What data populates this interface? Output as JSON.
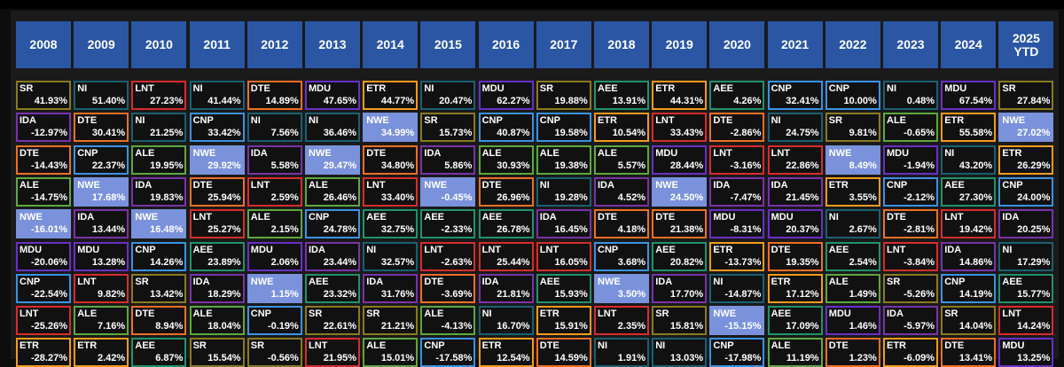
{
  "years": [
    "2008",
    "2009",
    "2010",
    "2011",
    "2012",
    "2013",
    "2014",
    "2015",
    "2016",
    "2017",
    "2018",
    "2019",
    "2020",
    "2021",
    "2022",
    "2023",
    "2024",
    "2025\nYTD"
  ],
  "colors": {
    "SR": "#8b7a1e",
    "NI": "#1b5f73",
    "LNT": "#d62c2c",
    "DTE": "#ee6f24",
    "MDU": "#6a2fc6",
    "ETR": "#f39b1a",
    "AEE": "#21926a",
    "CNP": "#3a92e2",
    "IDA": "#7a32a8",
    "ALE": "#5ea83c",
    "NWE": "#7a92dc"
  },
  "columns": [
    [
      [
        "SR",
        "41.93%"
      ],
      [
        "IDA",
        "-12.97%"
      ],
      [
        "DTE",
        "-14.43%"
      ],
      [
        "ALE",
        "-14.75%"
      ],
      [
        "NWE",
        "-16.01%"
      ],
      [
        "MDU",
        "-20.06%"
      ],
      [
        "CNP",
        "-22.54%"
      ],
      [
        "LNT",
        "-25.26%"
      ],
      [
        "ETR",
        "-28.27%"
      ]
    ],
    [
      [
        "NI",
        "51.40%"
      ],
      [
        "DTE",
        "30.41%"
      ],
      [
        "CNP",
        "22.37%"
      ],
      [
        "NWE",
        "17.68%"
      ],
      [
        "IDA",
        "13.44%"
      ],
      [
        "MDU",
        "13.28%"
      ],
      [
        "LNT",
        "9.82%"
      ],
      [
        "ALE",
        "7.16%"
      ],
      [
        "ETR",
        "2.42%"
      ]
    ],
    [
      [
        "LNT",
        "27.23%"
      ],
      [
        "NI",
        "21.25%"
      ],
      [
        "ALE",
        "19.95%"
      ],
      [
        "IDA",
        "19.83%"
      ],
      [
        "NWE",
        "16.48%"
      ],
      [
        "CNP",
        "14.26%"
      ],
      [
        "SR",
        "13.42%"
      ],
      [
        "DTE",
        "8.94%"
      ],
      [
        "AEE",
        "6.87%"
      ]
    ],
    [
      [
        "NI",
        "41.44%"
      ],
      [
        "CNP",
        "33.42%"
      ],
      [
        "NWE",
        "29.92%"
      ],
      [
        "DTE",
        "25.94%"
      ],
      [
        "LNT",
        "25.27%"
      ],
      [
        "AEE",
        "23.89%"
      ],
      [
        "IDA",
        "18.29%"
      ],
      [
        "ALE",
        "18.04%"
      ],
      [
        "SR",
        "15.54%"
      ]
    ],
    [
      [
        "DTE",
        "14.89%"
      ],
      [
        "NI",
        "7.56%"
      ],
      [
        "IDA",
        "5.58%"
      ],
      [
        "LNT",
        "2.59%"
      ],
      [
        "ALE",
        "2.15%"
      ],
      [
        "MDU",
        "2.06%"
      ],
      [
        "NWE",
        "1.15%"
      ],
      [
        "CNP",
        "-0.19%"
      ],
      [
        "SR",
        "-0.56%"
      ]
    ],
    [
      [
        "MDU",
        "47.65%"
      ],
      [
        "NI",
        "36.46%"
      ],
      [
        "NWE",
        "29.47%"
      ],
      [
        "ALE",
        "26.46%"
      ],
      [
        "CNP",
        "24.78%"
      ],
      [
        "IDA",
        "23.44%"
      ],
      [
        "AEE",
        "23.32%"
      ],
      [
        "SR",
        "22.61%"
      ],
      [
        "LNT",
        "21.95%"
      ]
    ],
    [
      [
        "ETR",
        "44.77%"
      ],
      [
        "NWE",
        "34.99%"
      ],
      [
        "DTE",
        "34.80%"
      ],
      [
        "LNT",
        "33.40%"
      ],
      [
        "AEE",
        "32.75%"
      ],
      [
        "NI",
        "32.57%"
      ],
      [
        "IDA",
        "31.76%"
      ],
      [
        "SR",
        "21.21%"
      ],
      [
        "ALE",
        "15.01%"
      ]
    ],
    [
      [
        "NI",
        "20.47%"
      ],
      [
        "SR",
        "15.73%"
      ],
      [
        "IDA",
        "5.86%"
      ],
      [
        "NWE",
        "-0.45%"
      ],
      [
        "AEE",
        "-2.33%"
      ],
      [
        "LNT",
        "-2.63%"
      ],
      [
        "DTE",
        "-3.69%"
      ],
      [
        "ALE",
        "-4.13%"
      ],
      [
        "CNP",
        "-17.58%"
      ]
    ],
    [
      [
        "MDU",
        "62.27%"
      ],
      [
        "CNP",
        "40.87%"
      ],
      [
        "ALE",
        "30.93%"
      ],
      [
        "DTE",
        "26.96%"
      ],
      [
        "AEE",
        "26.78%"
      ],
      [
        "LNT",
        "25.44%"
      ],
      [
        "IDA",
        "21.81%"
      ],
      [
        "NI",
        "16.70%"
      ],
      [
        "ETR",
        "12.54%"
      ]
    ],
    [
      [
        "SR",
        "19.88%"
      ],
      [
        "CNP",
        "19.58%"
      ],
      [
        "ALE",
        "19.38%"
      ],
      [
        "NI",
        "19.28%"
      ],
      [
        "IDA",
        "16.45%"
      ],
      [
        "LNT",
        "16.05%"
      ],
      [
        "AEE",
        "15.93%"
      ],
      [
        "ETR",
        "15.91%"
      ],
      [
        "DTE",
        "14.59%"
      ]
    ],
    [
      [
        "AEE",
        "13.91%"
      ],
      [
        "ETR",
        "10.54%"
      ],
      [
        "ALE",
        "5.57%"
      ],
      [
        "IDA",
        "4.52%"
      ],
      [
        "DTE",
        "4.18%"
      ],
      [
        "CNP",
        "3.68%"
      ],
      [
        "NWE",
        "3.50%"
      ],
      [
        "LNT",
        "2.35%"
      ],
      [
        "NI",
        "1.91%"
      ]
    ],
    [
      [
        "ETR",
        "44.31%"
      ],
      [
        "LNT",
        "33.43%"
      ],
      [
        "MDU",
        "28.44%"
      ],
      [
        "NWE",
        "24.50%"
      ],
      [
        "DTE",
        "21.38%"
      ],
      [
        "AEE",
        "20.82%"
      ],
      [
        "IDA",
        "17.70%"
      ],
      [
        "SR",
        "15.81%"
      ],
      [
        "NI",
        "13.03%"
      ]
    ],
    [
      [
        "AEE",
        "4.26%"
      ],
      [
        "DTE",
        "-2.86%"
      ],
      [
        "LNT",
        "-3.16%"
      ],
      [
        "IDA",
        "-7.47%"
      ],
      [
        "MDU",
        "-8.31%"
      ],
      [
        "ETR",
        "-13.73%"
      ],
      [
        "NI",
        "-14.87%"
      ],
      [
        "NWE",
        "-15.15%"
      ],
      [
        "CNP",
        "-17.98%"
      ]
    ],
    [
      [
        "CNP",
        "32.41%"
      ],
      [
        "NI",
        "24.75%"
      ],
      [
        "LNT",
        "22.86%"
      ],
      [
        "IDA",
        "21.45%"
      ],
      [
        "MDU",
        "20.37%"
      ],
      [
        "DTE",
        "19.35%"
      ],
      [
        "ETR",
        "17.12%"
      ],
      [
        "AEE",
        "17.09%"
      ],
      [
        "ALE",
        "11.19%"
      ]
    ],
    [
      [
        "CNP",
        "10.00%"
      ],
      [
        "SR",
        "9.81%"
      ],
      [
        "NWE",
        "8.49%"
      ],
      [
        "ETR",
        "3.55%"
      ],
      [
        "NI",
        "2.67%"
      ],
      [
        "AEE",
        "2.54%"
      ],
      [
        "ALE",
        "1.49%"
      ],
      [
        "MDU",
        "1.46%"
      ],
      [
        "DTE",
        "1.23%"
      ]
    ],
    [
      [
        "NI",
        "0.48%"
      ],
      [
        "ALE",
        "-0.65%"
      ],
      [
        "MDU",
        "-1.94%"
      ],
      [
        "CNP",
        "-2.12%"
      ],
      [
        "DTE",
        "-2.81%"
      ],
      [
        "LNT",
        "-3.84%"
      ],
      [
        "SR",
        "-5.26%"
      ],
      [
        "IDA",
        "-5.97%"
      ],
      [
        "ETR",
        "-6.09%"
      ]
    ],
    [
      [
        "MDU",
        "67.54%"
      ],
      [
        "ETR",
        "55.58%"
      ],
      [
        "NI",
        "43.20%"
      ],
      [
        "AEE",
        "27.30%"
      ],
      [
        "LNT",
        "19.42%"
      ],
      [
        "IDA",
        "14.86%"
      ],
      [
        "CNP",
        "14.19%"
      ],
      [
        "SR",
        "14.04%"
      ],
      [
        "DTE",
        "13.41%"
      ]
    ],
    [
      [
        "SR",
        "27.84%"
      ],
      [
        "NWE",
        "27.02%"
      ],
      [
        "ETR",
        "26.29%"
      ],
      [
        "CNP",
        "24.00%"
      ],
      [
        "IDA",
        "20.25%"
      ],
      [
        "NI",
        "17.29%"
      ],
      [
        "AEE",
        "15.77%"
      ],
      [
        "LNT",
        "14.24%"
      ],
      [
        "MDU",
        "13.25%"
      ]
    ]
  ]
}
